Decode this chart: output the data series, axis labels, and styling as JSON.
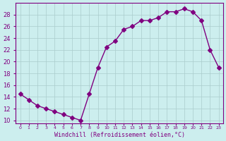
{
  "x": [
    0,
    1,
    2,
    3,
    4,
    5,
    6,
    7,
    8,
    9,
    10,
    11,
    12,
    13,
    14,
    15,
    16,
    17,
    18,
    19,
    20,
    21,
    22,
    23
  ],
  "y": [
    14.5,
    13.5,
    12.5,
    12.0,
    11.5,
    11.0,
    10.5,
    10.0,
    14.5,
    19.0,
    22.5,
    23.5,
    25.5,
    26.0,
    27.0,
    27.0,
    27.5,
    28.5,
    28.5,
    29.0,
    28.5,
    27.0,
    22.0,
    19.0
  ],
  "line_color": "#800080",
  "marker": "D",
  "marker_size": 3,
  "bg_color": "#cceeee",
  "grid_color": "#aacccc",
  "xlabel": "Windchill (Refroidissement éolien,°C)",
  "xlabel_color": "#800080",
  "ylabel_ticks": [
    10,
    12,
    14,
    16,
    18,
    20,
    22,
    24,
    26,
    28
  ],
  "ylim": [
    9.5,
    30
  ],
  "xlim": [
    -0.5,
    23.5
  ],
  "tick_color": "#800080",
  "spine_color": "#800080"
}
